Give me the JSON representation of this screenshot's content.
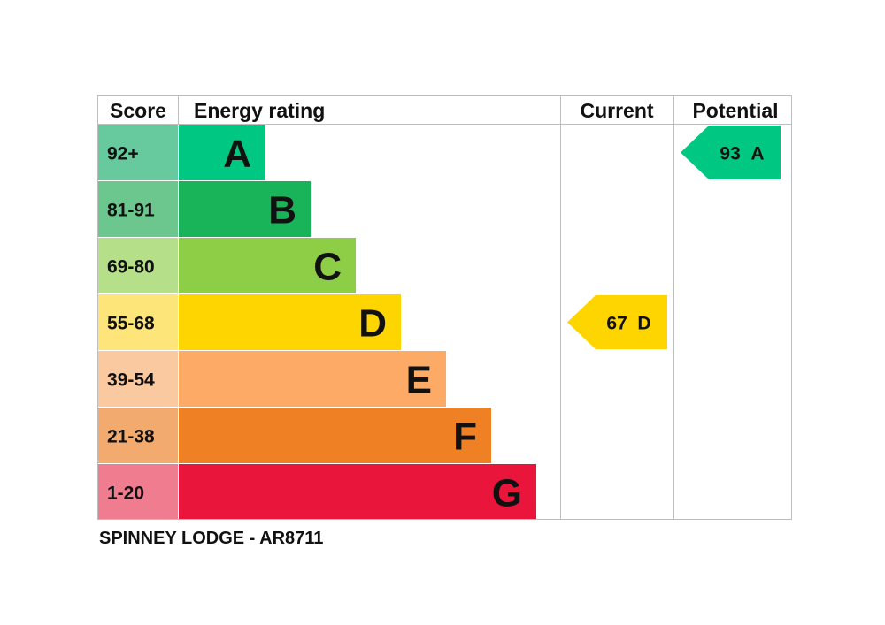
{
  "headers": {
    "score": "Score",
    "rating": "Energy rating",
    "current": "Current",
    "potential": "Potential"
  },
  "chart_data": {
    "type": "bar",
    "bands": [
      {
        "letter": "A",
        "range": "92+",
        "color": "#00c781",
        "score_color": "#66ca9e"
      },
      {
        "letter": "B",
        "range": "81-91",
        "color": "#19b459",
        "score_color": "#6cc78e"
      },
      {
        "letter": "C",
        "range": "69-80",
        "color": "#8dce46",
        "score_color": "#b6df8a"
      },
      {
        "letter": "D",
        "range": "55-68",
        "color": "#ffd500",
        "score_color": "#fde57a"
      },
      {
        "letter": "E",
        "range": "39-54",
        "color": "#fcaa65",
        "score_color": "#fbc9a0"
      },
      {
        "letter": "F",
        "range": "21-38",
        "color": "#ef8023",
        "score_color": "#f3aa6e"
      },
      {
        "letter": "G",
        "range": "1-20",
        "color": "#e9153b",
        "score_color": "#f07c8f"
      }
    ],
    "current": {
      "score": 67,
      "band": "D",
      "label": "67 D",
      "color": "#ffd500"
    },
    "potential": {
      "score": 93,
      "band": "A",
      "label": "93 A",
      "color": "#00c781"
    }
  },
  "caption": "SPINNEY LODGE - AR8711"
}
